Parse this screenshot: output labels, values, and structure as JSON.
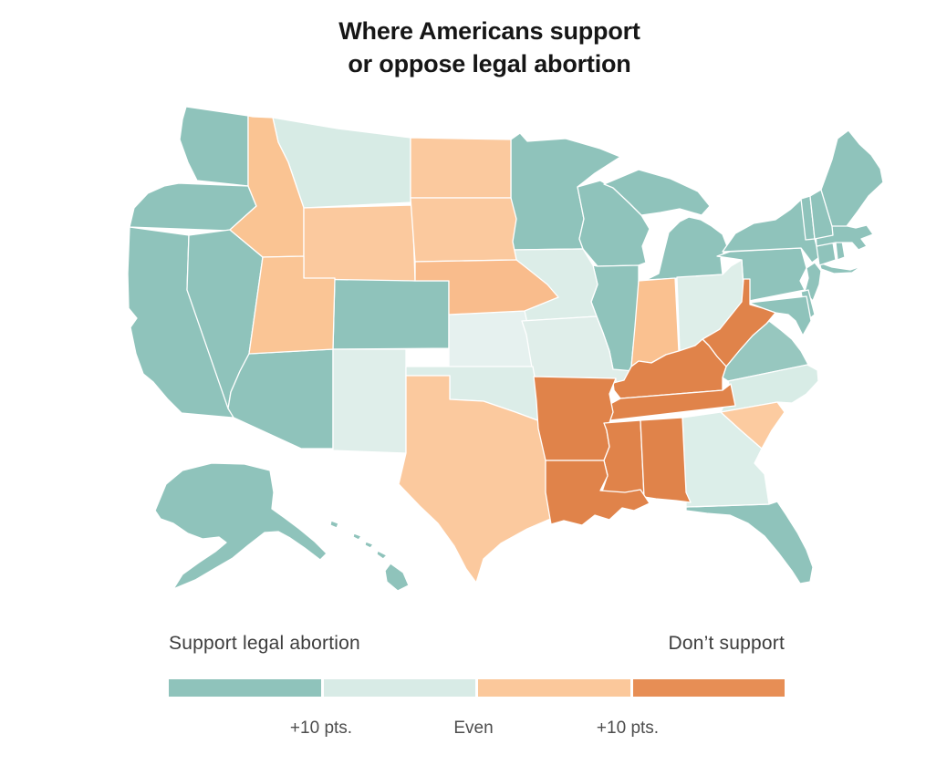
{
  "title": {
    "line1": "Where Americans support",
    "line2": "or oppose legal abortion"
  },
  "legend": {
    "left_label": "Support legal abortion",
    "right_label": "Don’t support",
    "swatches": [
      {
        "name": "support-strong",
        "color": "#8FC3BB"
      },
      {
        "name": "support-lean",
        "color": "#D8EBE6"
      },
      {
        "name": "oppose-lean",
        "color": "#FBC89B"
      },
      {
        "name": "oppose-strong",
        "color": "#E78E55"
      }
    ],
    "ticks": [
      "+10 pts.",
      "Even",
      "+10 pts."
    ]
  },
  "chart_data": {
    "type": "choropleth",
    "geography": "United States, by state",
    "measure": "Net margin of support for legal abortion",
    "categories": [
      "support_10plus",
      "support_lean",
      "oppose_lean",
      "oppose_10plus"
    ],
    "category_colors": {
      "support_10plus": "#8FC3BB",
      "support_lean": "#D8EBE6",
      "oppose_lean": "#FBC99E",
      "oppose_10plus": "#E0834A"
    },
    "states": [
      {
        "abbr": "WA",
        "name": "Washington",
        "category": "support_10plus",
        "fill": "#8FC3BB"
      },
      {
        "abbr": "OR",
        "name": "Oregon",
        "category": "support_10plus",
        "fill": "#8FC3BB"
      },
      {
        "abbr": "CA",
        "name": "California",
        "category": "support_10plus",
        "fill": "#8FC3BB"
      },
      {
        "abbr": "NV",
        "name": "Nevada",
        "category": "support_10plus",
        "fill": "#8FC3BB"
      },
      {
        "abbr": "AZ",
        "name": "Arizona",
        "category": "support_10plus",
        "fill": "#8FC3BB"
      },
      {
        "abbr": "CO",
        "name": "Colorado",
        "category": "support_10plus",
        "fill": "#8FC3BB"
      },
      {
        "abbr": "MN",
        "name": "Minnesota",
        "category": "support_10plus",
        "fill": "#8FC3BB"
      },
      {
        "abbr": "WI",
        "name": "Wisconsin",
        "category": "support_10plus",
        "fill": "#8FC3BB"
      },
      {
        "abbr": "MI",
        "name": "Michigan",
        "category": "support_10plus",
        "fill": "#8FC3BB"
      },
      {
        "abbr": "IL",
        "name": "Illinois",
        "category": "support_10plus",
        "fill": "#8FC3BB"
      },
      {
        "abbr": "PA",
        "name": "Pennsylvania",
        "category": "support_10plus",
        "fill": "#8FC3BB"
      },
      {
        "abbr": "NY",
        "name": "New York",
        "category": "support_10plus",
        "fill": "#8FC3BB"
      },
      {
        "abbr": "NJ",
        "name": "New Jersey",
        "category": "support_10plus",
        "fill": "#8FC3BB"
      },
      {
        "abbr": "CT",
        "name": "Connecticut",
        "category": "support_10plus",
        "fill": "#8FC3BB"
      },
      {
        "abbr": "RI",
        "name": "Rhode Island",
        "category": "support_10plus",
        "fill": "#8FC3BB"
      },
      {
        "abbr": "MA",
        "name": "Massachusetts",
        "category": "support_10plus",
        "fill": "#8FC3BB"
      },
      {
        "abbr": "VT",
        "name": "Vermont",
        "category": "support_10plus",
        "fill": "#8FC3BB"
      },
      {
        "abbr": "NH",
        "name": "New Hampshire",
        "category": "support_10plus",
        "fill": "#8FC3BB"
      },
      {
        "abbr": "ME",
        "name": "Maine",
        "category": "support_10plus",
        "fill": "#8FC3BB"
      },
      {
        "abbr": "DE",
        "name": "Delaware",
        "category": "support_10plus",
        "fill": "#8FC3BB"
      },
      {
        "abbr": "MD",
        "name": "Maryland",
        "category": "support_10plus",
        "fill": "#8FC3BB"
      },
      {
        "abbr": "VA",
        "name": "Virginia",
        "category": "support_10plus",
        "fill": "#97C7BF"
      },
      {
        "abbr": "FL",
        "name": "Florida",
        "category": "support_10plus",
        "fill": "#8FC3BB"
      },
      {
        "abbr": "AK",
        "name": "Alaska",
        "category": "support_10plus",
        "fill": "#8FC3BB"
      },
      {
        "abbr": "HI",
        "name": "Hawaii",
        "category": "support_10plus",
        "fill": "#8FC3BB"
      },
      {
        "abbr": "MT",
        "name": "Montana",
        "category": "support_lean",
        "fill": "#D7EBE5"
      },
      {
        "abbr": "IA",
        "name": "Iowa",
        "category": "support_lean",
        "fill": "#DCEDE8"
      },
      {
        "abbr": "KS",
        "name": "Kansas",
        "category": "support_lean",
        "fill": "#E6F1EF"
      },
      {
        "abbr": "MO",
        "name": "Missouri",
        "category": "support_lean",
        "fill": "#E0EEEA"
      },
      {
        "abbr": "OH",
        "name": "Ohio",
        "category": "support_lean",
        "fill": "#DEEEE9"
      },
      {
        "abbr": "NM",
        "name": "New Mexico",
        "category": "support_lean",
        "fill": "#DFEEEA"
      },
      {
        "abbr": "OK",
        "name": "Oklahoma",
        "category": "support_lean",
        "fill": "#DCEDE8"
      },
      {
        "abbr": "NC",
        "name": "North Carolina",
        "category": "support_lean",
        "fill": "#D8ECE6"
      },
      {
        "abbr": "GA",
        "name": "Georgia",
        "category": "support_lean",
        "fill": "#DCEEE9"
      },
      {
        "abbr": "ID",
        "name": "Idaho",
        "category": "oppose_lean",
        "fill": "#FAC493"
      },
      {
        "abbr": "WY",
        "name": "Wyoming",
        "category": "oppose_lean",
        "fill": "#FBC99E"
      },
      {
        "abbr": "UT",
        "name": "Utah",
        "category": "oppose_lean",
        "fill": "#FAC595"
      },
      {
        "abbr": "ND",
        "name": "North Dakota",
        "category": "oppose_lean",
        "fill": "#FBC99E"
      },
      {
        "abbr": "SD",
        "name": "South Dakota",
        "category": "oppose_lean",
        "fill": "#FBC99E"
      },
      {
        "abbr": "NE",
        "name": "Nebraska",
        "category": "oppose_lean",
        "fill": "#F9BC8C"
      },
      {
        "abbr": "IN",
        "name": "Indiana",
        "category": "oppose_lean",
        "fill": "#FAC190"
      },
      {
        "abbr": "TX",
        "name": "Texas",
        "category": "oppose_lean",
        "fill": "#FBC99E"
      },
      {
        "abbr": "SC",
        "name": "South Carolina",
        "category": "oppose_lean",
        "fill": "#FCCBA0"
      },
      {
        "abbr": "WV",
        "name": "West Virginia",
        "category": "oppose_10plus",
        "fill": "#E0834A"
      },
      {
        "abbr": "KY",
        "name": "Kentucky",
        "category": "oppose_10plus",
        "fill": "#E0834A"
      },
      {
        "abbr": "TN",
        "name": "Tennessee",
        "category": "oppose_10plus",
        "fill": "#E0834A"
      },
      {
        "abbr": "AR",
        "name": "Arkansas",
        "category": "oppose_10plus",
        "fill": "#E0834A"
      },
      {
        "abbr": "MS",
        "name": "Mississippi",
        "category": "oppose_10plus",
        "fill": "#E0834A"
      },
      {
        "abbr": "AL",
        "name": "Alabama",
        "category": "oppose_10plus",
        "fill": "#E0834A"
      },
      {
        "abbr": "LA",
        "name": "Louisiana",
        "category": "oppose_10plus",
        "fill": "#E0834A"
      }
    ]
  }
}
